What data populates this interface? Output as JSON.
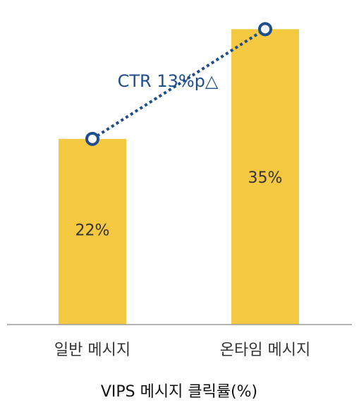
{
  "chart_data": {
    "type": "bar",
    "title": "VIPS 메시지 클릭률(%)",
    "categories": [
      "일반 메시지",
      "온타임 메시지"
    ],
    "values": [
      22,
      35
    ],
    "value_labels": [
      "22%",
      "35%"
    ],
    "ylim": [
      0,
      37.2
    ],
    "xlabel": "",
    "ylabel": "",
    "grid": false,
    "legend": "none",
    "annotation": {
      "type": "dotted-connector",
      "text": "CTR 13%p△"
    }
  },
  "colors": {
    "bar": "#F5C842",
    "connector": "#1F4E8C",
    "axis": "#9A9A9A",
    "text": "#333333"
  }
}
